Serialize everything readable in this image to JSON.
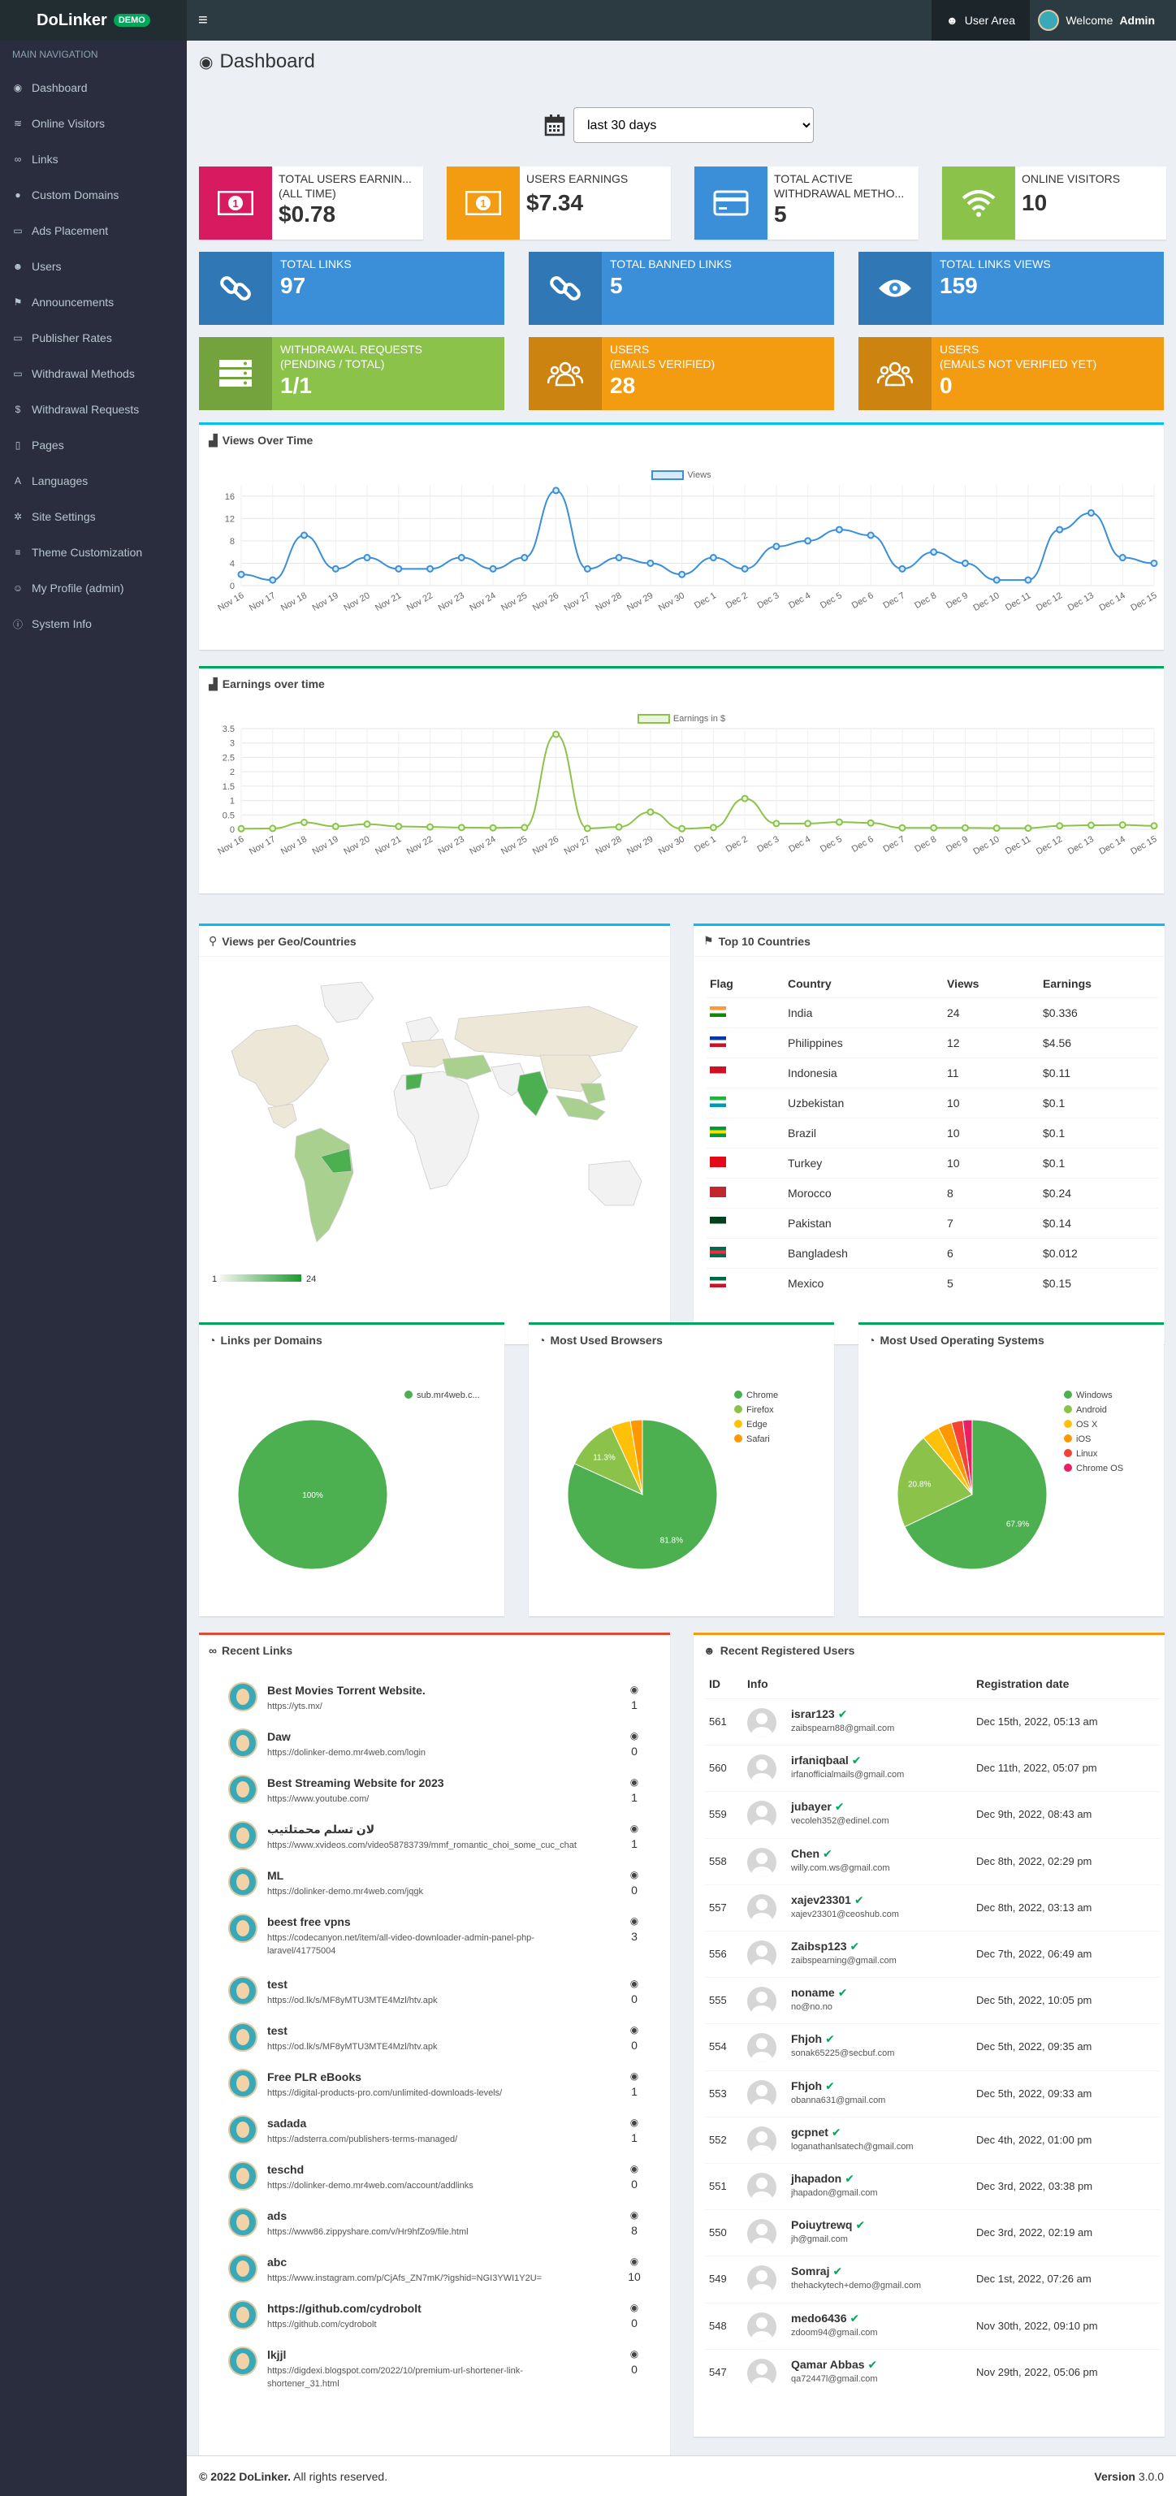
{
  "app": {
    "name": "DoLinker",
    "badge": "DEMO"
  },
  "topbar": {
    "user_area": "User Area",
    "welcome": "Welcome",
    "user": "Admin"
  },
  "sidebar": {
    "heading": "MAIN NAVIGATION",
    "items": [
      {
        "label": "Dashboard",
        "icon": "dashboard-icon",
        "glyph": "◉"
      },
      {
        "label": "Online Visitors",
        "icon": "wifi-icon",
        "glyph": "≋"
      },
      {
        "label": "Links",
        "icon": "link-icon",
        "glyph": "∞"
      },
      {
        "label": "Custom Domains",
        "icon": "globe-icon",
        "glyph": "●"
      },
      {
        "label": "Ads Placement",
        "icon": "money-icon",
        "glyph": "▭"
      },
      {
        "label": "Users",
        "icon": "users-icon",
        "glyph": "☻"
      },
      {
        "label": "Announcements",
        "icon": "flag-icon",
        "glyph": "⚑"
      },
      {
        "label": "Publisher Rates",
        "icon": "money-icon",
        "glyph": "▭"
      },
      {
        "label": "Withdrawal Methods",
        "icon": "credit-card-icon",
        "glyph": "▭"
      },
      {
        "label": "Withdrawal Requests",
        "icon": "dollar-icon",
        "glyph": "$"
      },
      {
        "label": "Pages",
        "icon": "file-icon",
        "glyph": "▯"
      },
      {
        "label": "Languages",
        "icon": "language-icon",
        "glyph": "A"
      },
      {
        "label": "Site Settings",
        "icon": "gear-icon",
        "glyph": "✲"
      },
      {
        "label": "Theme Customization",
        "icon": "list-icon",
        "glyph": "≡"
      },
      {
        "label": "My Profile (admin)",
        "icon": "user-icon",
        "glyph": "☺"
      },
      {
        "label": "System Info",
        "icon": "info-icon",
        "glyph": "ⓘ"
      }
    ]
  },
  "page": {
    "title": "Dashboard",
    "range": "last 30 days",
    "range_options": [
      "last 30 days"
    ]
  },
  "stats": {
    "total_earnings": {
      "label1": "TOTAL USERS EARNIN...",
      "label2": "(ALL TIME)",
      "value": "$0.78"
    },
    "users_earnings": {
      "label": "USERS EARNINGS",
      "value": "$7.34"
    },
    "withdrawal_methods": {
      "label1": "TOTAL ACTIVE",
      "label2": "WITHDRAWAL METHO...",
      "value": "5"
    },
    "online_visitors": {
      "label": "ONLINE VISITORS",
      "value": "10"
    },
    "total_links": {
      "label": "TOTAL LINKS",
      "value": "97"
    },
    "banned_links": {
      "label": "TOTAL BANNED LINKS",
      "value": "5"
    },
    "links_views": {
      "label": "TOTAL LINKS VIEWS",
      "value": "159"
    },
    "withdrawal_requests": {
      "label1": "WITHDRAWAL REQUESTS",
      "label2": "(PENDING / TOTAL)",
      "value": "1/1"
    },
    "users_verified": {
      "label1": "USERS",
      "label2": "(EMAILS VERIFIED)",
      "value": "28"
    },
    "users_unverified": {
      "label1": "USERS",
      "label2": "(EMAILS NOT VERIFIED YET)",
      "value": "0"
    }
  },
  "colors": {
    "red": "#d81b60",
    "orange": "#f39c12",
    "blue": "#3c8dbc",
    "lblue": "#3a8fd8",
    "green": "#8bc34a",
    "dgreen": "#4caf50",
    "yellow": "#f39c12"
  },
  "views_panel": {
    "title": "Views Over Time"
  },
  "earn_panel": {
    "title": "Earnings over time"
  },
  "chart_data": [
    {
      "type": "line",
      "title": "Views Over Time",
      "series": [
        {
          "name": "Views",
          "values": [
            2,
            1,
            9,
            3,
            5,
            3,
            3,
            5,
            3,
            5,
            17,
            3,
            5,
            4,
            2,
            5,
            3,
            7,
            8,
            10,
            9,
            3,
            6,
            4,
            1,
            1,
            10,
            13,
            5,
            4
          ]
        }
      ],
      "x": [
        "Nov 16",
        "Nov 17",
        "Nov 18",
        "Nov 19",
        "Nov 20",
        "Nov 21",
        "Nov 22",
        "Nov 23",
        "Nov 24",
        "Nov 25",
        "Nov 26",
        "Nov 27",
        "Nov 28",
        "Nov 29",
        "Nov 30",
        "Dec 1",
        "Dec 2",
        "Dec 3",
        "Dec 4",
        "Dec 5",
        "Dec 6",
        "Dec 7",
        "Dec 8",
        "Dec 9",
        "Dec 10",
        "Dec 11",
        "Dec 12",
        "Dec 13",
        "Dec 14",
        "Dec 15"
      ],
      "yticks": [
        0,
        4,
        8,
        12,
        16
      ],
      "ylim": [
        0,
        18
      ]
    },
    {
      "type": "line",
      "title": "Earnings over time",
      "series": [
        {
          "name": "Earnings in $",
          "values": [
            0.02,
            0.03,
            0.24,
            0.1,
            0.18,
            0.1,
            0.08,
            0.06,
            0.05,
            0.06,
            3.3,
            0.03,
            0.08,
            0.6,
            0.02,
            0.06,
            1.07,
            0.2,
            0.2,
            0.25,
            0.22,
            0.05,
            0.05,
            0.05,
            0.04,
            0.04,
            0.12,
            0.14,
            0.15,
            0.12
          ]
        }
      ],
      "x": [
        "Nov 16",
        "Nov 17",
        "Nov 18",
        "Nov 19",
        "Nov 20",
        "Nov 21",
        "Nov 22",
        "Nov 23",
        "Nov 24",
        "Nov 25",
        "Nov 26",
        "Nov 27",
        "Nov 28",
        "Nov 29",
        "Nov 30",
        "Dec 1",
        "Dec 2",
        "Dec 3",
        "Dec 4",
        "Dec 5",
        "Dec 6",
        "Dec 7",
        "Dec 8",
        "Dec 9",
        "Dec 10",
        "Dec 11",
        "Dec 12",
        "Dec 13",
        "Dec 14",
        "Dec 15"
      ],
      "yticks": [
        0,
        0.5,
        1,
        1.5,
        2,
        2.5,
        3,
        3.5
      ],
      "ylim": [
        0,
        3.5
      ]
    },
    {
      "type": "pie",
      "title": "Links per Domains",
      "slices": [
        {
          "name": "sub.mr4web.c...",
          "value": 100,
          "label": "100%",
          "color": "#4caf50"
        }
      ]
    },
    {
      "type": "pie",
      "title": "Most Used Browsers",
      "slices": [
        {
          "name": "Chrome",
          "value": 81.8,
          "label": "81.8%",
          "color": "#4caf50"
        },
        {
          "name": "Firefox",
          "value": 11.3,
          "label": "11.3%",
          "color": "#8bc34a"
        },
        {
          "name": "Edge",
          "value": 4.3,
          "label": "",
          "color": "#ffc107"
        },
        {
          "name": "Safari",
          "value": 2.6,
          "label": "",
          "color": "#ff9800"
        }
      ]
    },
    {
      "type": "pie",
      "title": "Most Used Operating Systems",
      "slices": [
        {
          "name": "Windows",
          "value": 67.9,
          "label": "67.9%",
          "color": "#4caf50"
        },
        {
          "name": "Android",
          "value": 20.8,
          "label": "20.8%",
          "color": "#8bc34a"
        },
        {
          "name": "OS X",
          "value": 3.8,
          "label": "",
          "color": "#ffc107"
        },
        {
          "name": "iOS",
          "value": 3.0,
          "label": "",
          "color": "#ff9800"
        },
        {
          "name": "Linux",
          "value": 2.5,
          "label": "",
          "color": "#f44336"
        },
        {
          "name": "Chrome OS",
          "value": 2.0,
          "label": "",
          "color": "#e91e63"
        }
      ]
    }
  ],
  "geo_panel": {
    "title": "Views per Geo/Countries",
    "legend_min": "1",
    "legend_max": "24"
  },
  "countries_panel": {
    "title": "Top 10 Countries",
    "headers": [
      "Flag",
      "Country",
      "Views",
      "Earnings"
    ],
    "rows": [
      {
        "country": "India",
        "views": "24",
        "earnings": "$0.336",
        "flag": "india-flag-icon",
        "c1": "#ff9933",
        "c2": "#ffffff",
        "c3": "#138808"
      },
      {
        "country": "Philippines",
        "views": "12",
        "earnings": "$4.56",
        "flag": "philippines-flag-icon",
        "c1": "#0038a8",
        "c2": "#ffffff",
        "c3": "#ce1126"
      },
      {
        "country": "Indonesia",
        "views": "11",
        "earnings": "$0.11",
        "flag": "indonesia-flag-icon",
        "c1": "#ce1126",
        "c2": "#ce1126",
        "c3": "#ffffff"
      },
      {
        "country": "Uzbekistan",
        "views": "10",
        "earnings": "$0.1",
        "flag": "uzbekistan-flag-icon",
        "c1": "#1eb53a",
        "c2": "#ffffff",
        "c3": "#0099b5"
      },
      {
        "country": "Brazil",
        "views": "10",
        "earnings": "$0.1",
        "flag": "brazil-flag-icon",
        "c1": "#009c3b",
        "c2": "#ffdf00",
        "c3": "#009c3b"
      },
      {
        "country": "Turkey",
        "views": "10",
        "earnings": "$0.1",
        "flag": "turkey-flag-icon",
        "c1": "#e30a17",
        "c2": "#e30a17",
        "c3": "#e30a17"
      },
      {
        "country": "Morocco",
        "views": "8",
        "earnings": "$0.24",
        "flag": "morocco-flag-icon",
        "c1": "#c1272d",
        "c2": "#c1272d",
        "c3": "#c1272d"
      },
      {
        "country": "Pakistan",
        "views": "7",
        "earnings": "$0.14",
        "flag": "pakistan-flag-icon",
        "c1": "#01411c",
        "c2": "#01411c",
        "c3": "#ffffff"
      },
      {
        "country": "Bangladesh",
        "views": "6",
        "earnings": "$0.012",
        "flag": "bangladesh-flag-icon",
        "c1": "#006a4e",
        "c2": "#f42a41",
        "c3": "#006a4e"
      },
      {
        "country": "Mexico",
        "views": "5",
        "earnings": "$0.15",
        "flag": "mexico-flag-icon",
        "c1": "#006847",
        "c2": "#ffffff",
        "c3": "#ce1126"
      }
    ]
  },
  "domains_panel": {
    "title": "Links per Domains"
  },
  "browsers_panel": {
    "title": "Most Used Browsers"
  },
  "os_panel": {
    "title": "Most Used Operating Systems"
  },
  "recent_links": {
    "title": "Recent Links",
    "items": [
      {
        "title": "Best Movies Torrent Website.",
        "url": "https://yts.mx/",
        "views": "1"
      },
      {
        "title": "Daw",
        "url": "https://dolinker-demo.mr4web.com/login",
        "views": "0"
      },
      {
        "title": "Best Streaming Website for 2023",
        "url": "https://www.youtube.com/",
        "views": "1"
      },
      {
        "title": "لان تسلم محمتلتيب",
        "url": "https://www.xvideos.com/video58783739/mmf_romantic_choi_some_cuc_chat",
        "views": "1"
      },
      {
        "title": "ML",
        "url": "https://dolinker-demo.mr4web.com/jqgk",
        "views": "0"
      },
      {
        "title": "beest free vpns",
        "url": "https://codecanyon.net/item/all-video-downloader-admin-panel-php-laravel/41775004",
        "views": "3"
      },
      {
        "title": "test",
        "url": "https://od.lk/s/MF8yMTU3MTE4Mzl/htv.apk",
        "views": "0"
      },
      {
        "title": "test",
        "url": "https://od.lk/s/MF8yMTU3MTE4Mzl/htv.apk",
        "views": "0"
      },
      {
        "title": "Free PLR eBooks",
        "url": "https://digital-products-pro.com/unlimited-downloads-levels/",
        "views": "1"
      },
      {
        "title": "sadada",
        "url": "https://adsterra.com/publishers-terms-managed/",
        "views": "1"
      },
      {
        "title": "teschd",
        "url": "https://dolinker-demo.mr4web.com/account/addlinks",
        "views": "0"
      },
      {
        "title": "ads",
        "url": "https://www86.zippyshare.com/v/Hr9hfZo9/file.html",
        "views": "8"
      },
      {
        "title": "abc",
        "url": "https://www.instagram.com/p/CjAfs_ZN7mK/?igshid=NGI3YWI1Y2U=",
        "views": "10"
      },
      {
        "title": "https://github.com/cydrobolt",
        "url": "https://github.com/cydrobolt",
        "views": "0"
      },
      {
        "title": "lkjjl",
        "url": "https://digdexi.blogspot.com/2022/10/premium-url-shortener-link-shortener_31.html",
        "views": "0"
      }
    ]
  },
  "recent_users": {
    "title": "Recent Registered Users",
    "headers": [
      "ID",
      "Info",
      "Registration date"
    ],
    "items": [
      {
        "id": "561",
        "name": "israr123",
        "email": "zaibspearn88@gmail.com",
        "date": "Dec 15th, 2022, 05:13 am"
      },
      {
        "id": "560",
        "name": "irfaniqbaal",
        "email": "irfanofficialmails@gmail.com",
        "date": "Dec 11th, 2022, 05:07 pm"
      },
      {
        "id": "559",
        "name": "jubayer",
        "email": "vecoleh352@edinel.com",
        "date": "Dec 9th, 2022, 08:43 am"
      },
      {
        "id": "558",
        "name": "Chen",
        "email": "willy.com.ws@gmail.com",
        "date": "Dec 8th, 2022, 02:29 pm"
      },
      {
        "id": "557",
        "name": "xajev23301",
        "email": "xajev23301@ceoshub.com",
        "date": "Dec 8th, 2022, 03:13 am"
      },
      {
        "id": "556",
        "name": "Zaibsp123",
        "email": "zaibspearning@gmail.com",
        "date": "Dec 7th, 2022, 06:49 am"
      },
      {
        "id": "555",
        "name": "noname",
        "email": "no@no.no",
        "date": "Dec 5th, 2022, 10:05 pm"
      },
      {
        "id": "554",
        "name": "Fhjoh",
        "email": "sonak65225@secbuf.com",
        "date": "Dec 5th, 2022, 09:35 am"
      },
      {
        "id": "553",
        "name": "Fhjoh",
        "email": "obanna631@gmail.com",
        "date": "Dec 5th, 2022, 09:33 am"
      },
      {
        "id": "552",
        "name": "gcpnet",
        "email": "loganathanlsatech@gmail.com",
        "date": "Dec 4th, 2022, 01:00 pm"
      },
      {
        "id": "551",
        "name": "jhapadon",
        "email": "jhapadon@gmail.com",
        "date": "Dec 3rd, 2022, 03:38 pm"
      },
      {
        "id": "550",
        "name": "Poiuytrewq",
        "email": "jh@gmail.com",
        "date": "Dec 3rd, 2022, 02:19 am"
      },
      {
        "id": "549",
        "name": "Somraj",
        "email": "thehackytech+demo@gmail.com",
        "date": "Dec 1st, 2022, 07:26 am"
      },
      {
        "id": "548",
        "name": "medo6436",
        "email": "zdoom94@gmail.com",
        "date": "Nov 30th, 2022, 09:10 pm"
      },
      {
        "id": "547",
        "name": "Qamar Abbas",
        "email": "qa72447l@gmail.com",
        "date": "Nov 29th, 2022, 05:06 pm"
      }
    ]
  },
  "footer": {
    "copy": "© 2022 DoLinker.",
    "rights": "All rights reserved.",
    "version_label": "Version",
    "version": "3.0.0"
  }
}
